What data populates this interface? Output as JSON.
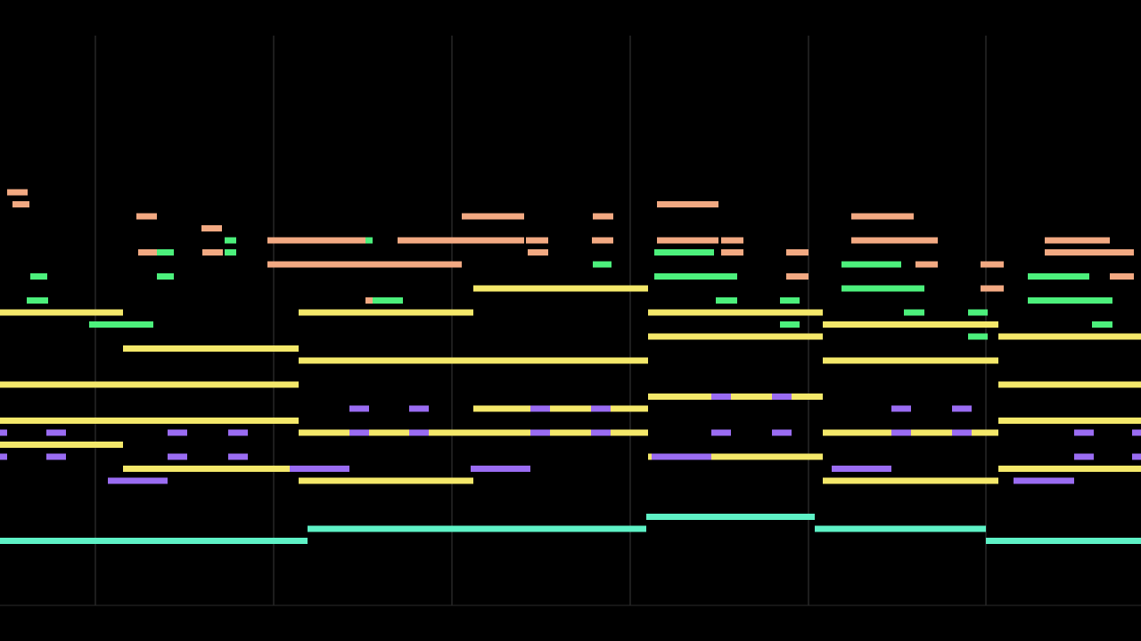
{
  "colors": {
    "background": "#000000",
    "measure_line": "#3a3a3a",
    "peach": "#f2a982",
    "green": "#4cf07c",
    "yellow": "#f4e86a",
    "purple": "#9a6cf2",
    "cyan": "#5ef2c6"
  },
  "voices": [
    {
      "name": "peach",
      "notes": [
        [
          8,
          31,
          22
        ],
        [
          14,
          33,
          21
        ],
        [
          153,
          176,
          20
        ],
        [
          155,
          178,
          17
        ],
        [
          226,
          249,
          19
        ],
        [
          227,
          250,
          17
        ],
        [
          300,
          410,
          18
        ],
        [
          300,
          518,
          16
        ],
        [
          410,
          452,
          13
        ],
        [
          446,
          588,
          18
        ],
        [
          518,
          588,
          20
        ],
        [
          590,
          615,
          18
        ],
        [
          592,
          615,
          17
        ],
        [
          665,
          688,
          20
        ],
        [
          664,
          688,
          18
        ],
        [
          737,
          806,
          21
        ],
        [
          737,
          806,
          18
        ],
        [
          809,
          834,
          18
        ],
        [
          809,
          834,
          17
        ],
        [
          882,
          907,
          17
        ],
        [
          882,
          907,
          15
        ],
        [
          955,
          1025,
          20
        ],
        [
          955,
          1052,
          18
        ],
        [
          1027,
          1052,
          16
        ],
        [
          1100,
          1126,
          16
        ],
        [
          1100,
          1126,
          14
        ],
        [
          1172,
          1245,
          18
        ],
        [
          1172,
          1272,
          17
        ],
        [
          1245,
          1272,
          15
        ]
      ]
    },
    {
      "name": "green",
      "notes": [
        [
          34,
          53,
          15
        ],
        [
          30,
          54,
          13
        ],
        [
          100,
          172,
          11
        ],
        [
          176,
          195,
          17
        ],
        [
          176,
          195,
          15
        ],
        [
          252,
          265,
          18
        ],
        [
          252,
          265,
          17
        ],
        [
          410,
          418,
          18
        ],
        [
          418,
          452,
          13
        ],
        [
          665,
          686,
          16
        ],
        [
          734,
          801,
          17
        ],
        [
          734,
          827,
          15
        ],
        [
          803,
          827,
          13
        ],
        [
          875,
          897,
          13
        ],
        [
          875,
          897,
          11
        ],
        [
          944,
          1011,
          16
        ],
        [
          944,
          1037,
          14
        ],
        [
          1014,
          1037,
          12
        ],
        [
          1086,
          1108,
          12
        ],
        [
          1086,
          1108,
          10
        ],
        [
          1153,
          1222,
          15
        ],
        [
          1153,
          1248,
          13
        ],
        [
          1225,
          1248,
          11
        ]
      ]
    },
    {
      "name": "yellow",
      "notes": [
        [
          0,
          138,
          12
        ],
        [
          0,
          335,
          6
        ],
        [
          0,
          335,
          3
        ],
        [
          0,
          138,
          1
        ],
        [
          138,
          335,
          9
        ],
        [
          138,
          335,
          -1
        ],
        [
          335,
          531,
          12
        ],
        [
          335,
          727,
          8
        ],
        [
          335,
          727,
          2
        ],
        [
          335,
          531,
          -2
        ],
        [
          531,
          727,
          14
        ],
        [
          531,
          727,
          4
        ],
        [
          727,
          923,
          12
        ],
        [
          727,
          923,
          10
        ],
        [
          727,
          923,
          5
        ],
        [
          727,
          923,
          0
        ],
        [
          923,
          1120,
          11
        ],
        [
          923,
          1120,
          8
        ],
        [
          923,
          1120,
          2
        ],
        [
          923,
          1120,
          -2
        ],
        [
          1120,
          1280,
          10
        ],
        [
          1120,
          1280,
          6
        ],
        [
          1120,
          1280,
          3
        ],
        [
          1120,
          1280,
          -1
        ]
      ]
    },
    {
      "name": "purple",
      "notes": [
        [
          0,
          8,
          2
        ],
        [
          0,
          8,
          0
        ],
        [
          52,
          74,
          2
        ],
        [
          52,
          74,
          0
        ],
        [
          121,
          188,
          -2
        ],
        [
          188,
          210,
          2
        ],
        [
          188,
          210,
          0
        ],
        [
          256,
          278,
          2
        ],
        [
          256,
          278,
          0
        ],
        [
          325,
          392,
          -1
        ],
        [
          392,
          414,
          4
        ],
        [
          392,
          414,
          2
        ],
        [
          459,
          481,
          4
        ],
        [
          459,
          481,
          2
        ],
        [
          528,
          595,
          -1
        ],
        [
          595,
          617,
          4
        ],
        [
          595,
          617,
          2
        ],
        [
          663,
          685,
          4
        ],
        [
          663,
          685,
          2
        ],
        [
          731,
          798,
          0
        ],
        [
          798,
          820,
          5
        ],
        [
          798,
          820,
          2
        ],
        [
          866,
          888,
          5
        ],
        [
          866,
          888,
          2
        ],
        [
          933,
          1000,
          -1
        ],
        [
          1000,
          1022,
          4
        ],
        [
          1000,
          1022,
          2
        ],
        [
          1068,
          1090,
          4
        ],
        [
          1068,
          1090,
          2
        ],
        [
          1137,
          1205,
          -2
        ],
        [
          1205,
          1227,
          2
        ],
        [
          1205,
          1227,
          0
        ],
        [
          1270,
          1280,
          2
        ],
        [
          1270,
          1280,
          0
        ]
      ]
    },
    {
      "name": "cyan",
      "notes": [
        [
          0,
          345,
          -7
        ],
        [
          345,
          725,
          -6
        ],
        [
          725,
          914,
          -5
        ],
        [
          914,
          1106,
          -6
        ],
        [
          1106,
          1280,
          -7
        ]
      ]
    }
  ],
  "measure_line_x": [
    107,
    307,
    507,
    707,
    907,
    1106
  ]
}
